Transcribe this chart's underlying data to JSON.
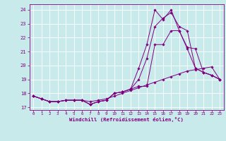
{
  "title": "",
  "xlabel": "Windchill (Refroidissement éolien,°C)",
  "background_color": "#c8eaea",
  "grid_color": "#ffffff",
  "line_color": "#800080",
  "xlim": [
    -0.5,
    23.5
  ],
  "ylim": [
    16.8,
    24.4
  ],
  "yticks": [
    17,
    18,
    19,
    20,
    21,
    22,
    23,
    24
  ],
  "xticks": [
    0,
    1,
    2,
    3,
    4,
    5,
    6,
    7,
    8,
    9,
    10,
    11,
    12,
    13,
    14,
    15,
    16,
    17,
    18,
    19,
    20,
    21,
    22,
    23
  ],
  "series": [
    [
      17.8,
      17.6,
      17.4,
      17.4,
      17.5,
      17.5,
      17.5,
      17.2,
      17.4,
      17.5,
      18.0,
      18.1,
      18.3,
      18.5,
      18.5,
      21.5,
      21.5,
      22.5,
      22.5,
      21.3,
      21.2,
      19.5,
      19.3,
      19.0
    ],
    [
      17.8,
      17.6,
      17.4,
      17.4,
      17.5,
      17.5,
      17.5,
      17.2,
      17.4,
      17.5,
      18.0,
      18.1,
      18.3,
      19.0,
      20.5,
      22.8,
      23.4,
      23.8,
      22.8,
      22.5,
      19.8,
      19.5,
      19.3,
      19.0
    ],
    [
      17.8,
      17.6,
      17.4,
      17.4,
      17.5,
      17.5,
      17.5,
      17.2,
      17.4,
      17.5,
      18.0,
      18.1,
      18.3,
      19.8,
      21.5,
      24.0,
      23.3,
      24.0,
      22.5,
      21.2,
      19.8,
      19.5,
      19.3,
      19.0
    ],
    [
      17.8,
      17.6,
      17.4,
      17.4,
      17.5,
      17.5,
      17.5,
      17.4,
      17.5,
      17.6,
      17.8,
      18.0,
      18.2,
      18.4,
      18.6,
      18.8,
      19.0,
      19.2,
      19.4,
      19.6,
      19.7,
      19.8,
      19.9,
      19.0
    ]
  ]
}
